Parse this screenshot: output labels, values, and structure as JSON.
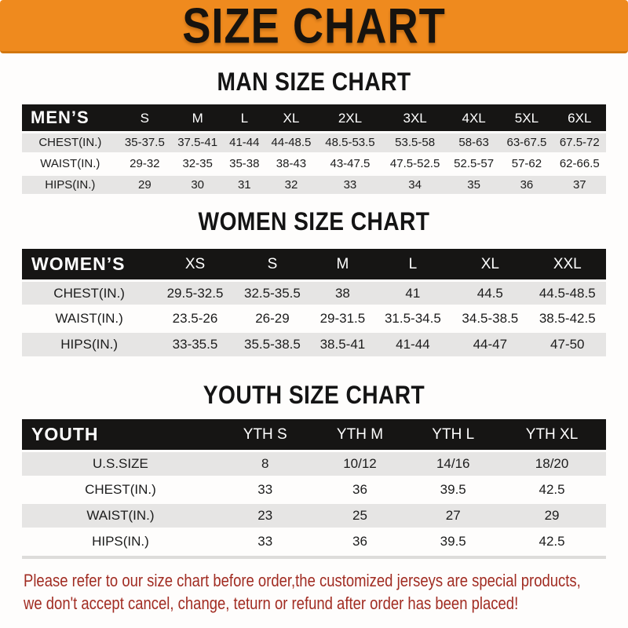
{
  "banner": {
    "title": "SIZE CHART"
  },
  "sections": [
    {
      "id": "mens",
      "title": "MAN SIZE CHART",
      "header_label": "MEN’S",
      "columns": [
        "S",
        "M",
        "L",
        "XL",
        "2XL",
        "3XL",
        "4XL",
        "5XL",
        "6XL"
      ],
      "rows": [
        {
          "label": "CHEST(IN.)",
          "values": [
            "35-37.5",
            "37.5-41",
            "41-44",
            "44-48.5",
            "48.5-53.5",
            "53.5-58",
            "58-63",
            "63-67.5",
            "67.5-72"
          ]
        },
        {
          "label": "WAIST(IN.)",
          "values": [
            "29-32",
            "32-35",
            "35-38",
            "38-43",
            "43-47.5",
            "47.5-52.5",
            "52.5-57",
            "57-62",
            "62-66.5"
          ]
        },
        {
          "label": "HIPS(IN.)",
          "values": [
            "29",
            "30",
            "31",
            "32",
            "33",
            "34",
            "35",
            "36",
            "37"
          ]
        }
      ]
    },
    {
      "id": "womens",
      "title": "WOMEN SIZE CHART",
      "header_label": "WOMEN’S",
      "columns": [
        "XS",
        "S",
        "M",
        "L",
        "XL",
        "XXL"
      ],
      "rows": [
        {
          "label": "CHEST(IN.)",
          "values": [
            "29.5-32.5",
            "32.5-35.5",
            "38",
            "41",
            "44.5",
            "44.5-48.5"
          ]
        },
        {
          "label": "WAIST(IN.)",
          "values": [
            "23.5-26",
            "26-29",
            "29-31.5",
            "31.5-34.5",
            "34.5-38.5",
            "38.5-42.5"
          ]
        },
        {
          "label": "HIPS(IN.)",
          "values": [
            "33-35.5",
            "35.5-38.5",
            "38.5-41",
            "41-44",
            "44-47",
            "47-50"
          ]
        }
      ]
    },
    {
      "id": "youth",
      "title": "YOUTH SIZE CHART",
      "header_label": "YOUTH",
      "columns": [
        "YTH S",
        "YTH M",
        "YTH L",
        "YTH XL"
      ],
      "rows": [
        {
          "label": "U.S.SIZE",
          "values": [
            "8",
            "10/12",
            "14/16",
            "18/20"
          ]
        },
        {
          "label": "CHEST(IN.)",
          "values": [
            "33",
            "36",
            "39.5",
            "42.5"
          ]
        },
        {
          "label": "WAIST(IN.)",
          "values": [
            "23",
            "25",
            "27",
            "29"
          ]
        },
        {
          "label": "HIPS(IN.)",
          "values": [
            "33",
            "36",
            "39.5",
            "42.5"
          ]
        }
      ]
    }
  ],
  "footer": {
    "line1": "Please refer to our size chart before order,the customized jerseys are special products,",
    "line2": "we don't accept cancel, change, teturn or refund after order has been placed!"
  },
  "colors": {
    "banner-bg": "#ef8a1e",
    "bar-bg": "#161514",
    "row-alt": "#e6e5e4",
    "footer-red": "#a12c22"
  }
}
